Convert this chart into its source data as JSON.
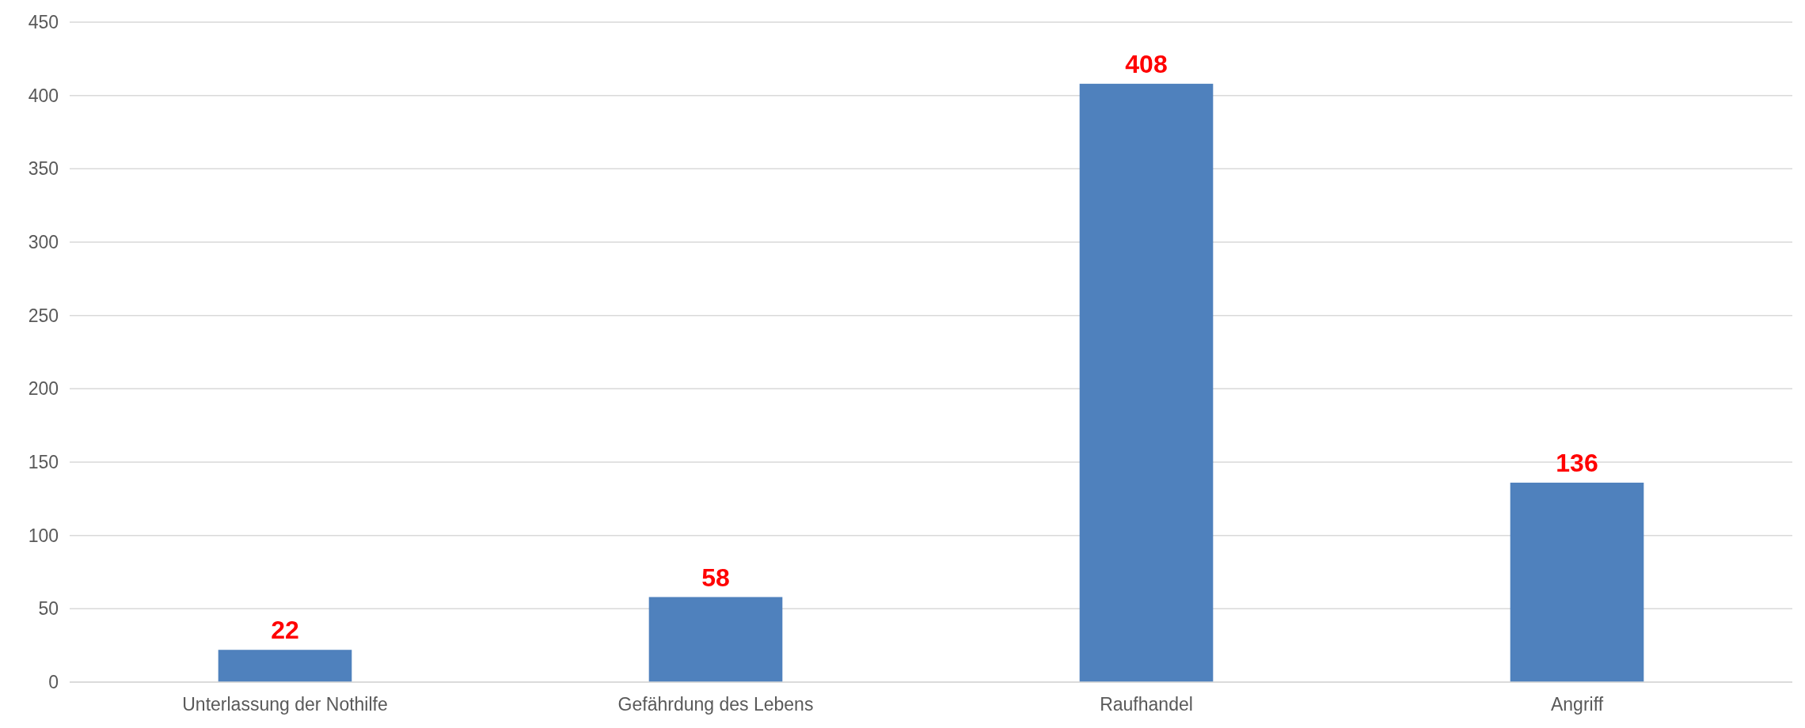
{
  "chart_data": {
    "type": "bar",
    "categories": [
      "Unterlassung der Nothilfe",
      "Gefährdung des Lebens",
      "Raufhandel",
      "Angriff"
    ],
    "values": [
      22,
      58,
      408,
      136
    ],
    "color": "#4f81bd",
    "data_labels": true,
    "ylim": [
      0,
      450
    ],
    "yticks": [
      0,
      50,
      100,
      150,
      200,
      250,
      300,
      350,
      400,
      450
    ],
    "grid": "y"
  }
}
